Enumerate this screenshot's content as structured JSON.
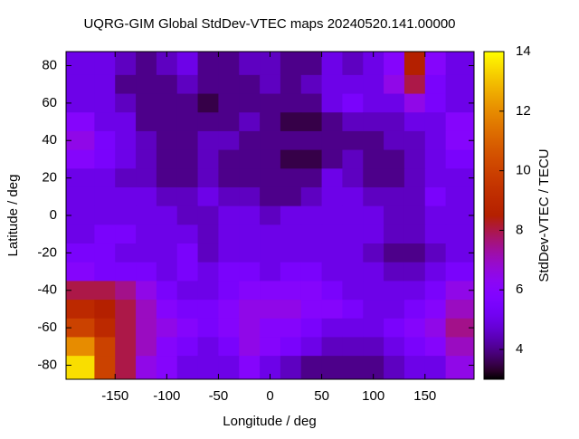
{
  "chart_data": {
    "type": "heatmap",
    "title": "UQRG-GIM Global StdDev-VTEC maps 20240520.141.00000",
    "x_label": "Longitude / deg",
    "y_label": "Latitude / deg",
    "colorbar_label": "StdDev-VTEC / TECU",
    "x": [
      -180,
      -160,
      -140,
      -120,
      -100,
      -80,
      -60,
      -40,
      -20,
      0,
      20,
      40,
      60,
      80,
      100,
      120,
      140,
      160,
      180
    ],
    "y": [
      80,
      70,
      60,
      50,
      40,
      30,
      20,
      10,
      0,
      -10,
      -20,
      -30,
      -40,
      -50,
      -60,
      -70,
      -80
    ],
    "z": [
      [
        5,
        5,
        4.5,
        4,
        4.5,
        5,
        4,
        4,
        4.5,
        4.5,
        4,
        4,
        5,
        4.5,
        5,
        6,
        8.5,
        6,
        5
      ],
      [
        5,
        5,
        4,
        4,
        4,
        4.5,
        4,
        4,
        4,
        4.5,
        4,
        4.5,
        5,
        5,
        5,
        6.5,
        8,
        5.5,
        5
      ],
      [
        5,
        5,
        4.5,
        4,
        4,
        4,
        3.5,
        4,
        4,
        4,
        4,
        4,
        5,
        5.5,
        5,
        5,
        6.5,
        5.5,
        5
      ],
      [
        6,
        5,
        5,
        4,
        4,
        4,
        4,
        4,
        4.5,
        4,
        3.5,
        3.5,
        4,
        4.5,
        4.5,
        4.5,
        5,
        5,
        6
      ],
      [
        6.5,
        5.5,
        5,
        4.5,
        4,
        4,
        4.5,
        4.5,
        4,
        4,
        4,
        4,
        4,
        4,
        4,
        4.5,
        4.5,
        5,
        6
      ],
      [
        6,
        5.5,
        5,
        4.5,
        4,
        4,
        4.5,
        4,
        4,
        4,
        3.5,
        3.5,
        4,
        4.5,
        4,
        4,
        4.5,
        5,
        5.5
      ],
      [
        5,
        5,
        4.5,
        4.5,
        4,
        4,
        4.5,
        4,
        4,
        4,
        4,
        4,
        5,
        4.5,
        4,
        4,
        4.5,
        5,
        5
      ],
      [
        5,
        5,
        5,
        5,
        4.5,
        4.5,
        5,
        4.5,
        4.5,
        4,
        4,
        4.5,
        5,
        5,
        4.5,
        4.5,
        4.5,
        5.5,
        5
      ],
      [
        5,
        5,
        5,
        5,
        5,
        4.5,
        4.5,
        5,
        5,
        4.5,
        5,
        5,
        5,
        5,
        5,
        4.5,
        4.5,
        5,
        5
      ],
      [
        5,
        5.5,
        5.5,
        5,
        5,
        5,
        4.5,
        5,
        5,
        5,
        5,
        5,
        5,
        5,
        5,
        4.5,
        4.5,
        5,
        5
      ],
      [
        5.5,
        5.5,
        5,
        5,
        5,
        5.5,
        4.5,
        5,
        5,
        5,
        5,
        5,
        5,
        5,
        4.5,
        4,
        4,
        4.5,
        5
      ],
      [
        6,
        5.5,
        5.5,
        5.5,
        5,
        5.5,
        5,
        5.5,
        5.5,
        5,
        5.5,
        5.5,
        5,
        5,
        5,
        4.5,
        4.5,
        5,
        5.5
      ],
      [
        8,
        8,
        7.5,
        6.5,
        5.5,
        5,
        5,
        5.5,
        6,
        6,
        6,
        6,
        5.5,
        5,
        5,
        5,
        5,
        5.5,
        6.5
      ],
      [
        9,
        8.5,
        8,
        7,
        6,
        5.5,
        5.5,
        6,
        6.5,
        6.5,
        6.5,
        6,
        6,
        5.5,
        5,
        5,
        5.5,
        6,
        7
      ],
      [
        10,
        9,
        8,
        7,
        6.5,
        6,
        5.5,
        6,
        6.5,
        6,
        6,
        5.5,
        5,
        5,
        5,
        5.5,
        6,
        6.5,
        7.5
      ],
      [
        12,
        10,
        8,
        7,
        6,
        5.5,
        5,
        5.5,
        6.5,
        6,
        5.5,
        5,
        4.5,
        4.5,
        4.5,
        5,
        5.5,
        6,
        7
      ],
      [
        13.5,
        10,
        8,
        6.5,
        6,
        5,
        5,
        5,
        6,
        5,
        4.5,
        4,
        4,
        4,
        4,
        4.5,
        5,
        5,
        6.5
      ]
    ],
    "xlim": [
      -197.5,
      197.5
    ],
    "ylim": [
      -87.5,
      87.5
    ],
    "zlim": [
      3,
      14
    ],
    "xticks": [
      -150,
      -100,
      -50,
      0,
      50,
      100,
      150
    ],
    "yticks": [
      -80,
      -60,
      -40,
      -20,
      0,
      20,
      40,
      60,
      80
    ],
    "zticks": [
      4,
      6,
      8,
      10,
      12,
      14
    ]
  }
}
